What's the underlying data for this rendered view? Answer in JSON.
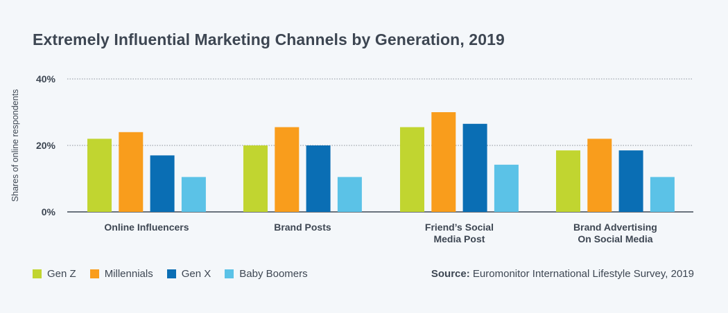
{
  "chart_data": {
    "type": "bar",
    "title": "Extremely Influential Marketing Channels by Generation, 2019",
    "ylabel": "Shares of online respondents",
    "yticks": [
      "0%",
      "20%",
      "40%"
    ],
    "ylim": [
      0,
      40
    ],
    "grid": true,
    "categories": [
      [
        "Online Influencers"
      ],
      [
        "Brand Posts"
      ],
      [
        "Friend’s Social",
        "Media Post"
      ],
      [
        "Brand Advertising",
        "On Social Media"
      ]
    ],
    "series": [
      {
        "name": "Gen Z",
        "color": "#c1d530",
        "values": [
          22,
          20,
          25.5,
          18.5
        ]
      },
      {
        "name": "Millennials",
        "color": "#f99d1c",
        "values": [
          24,
          25.5,
          30,
          22
        ]
      },
      {
        "name": "Gen X",
        "color": "#0a6eb4",
        "values": [
          17,
          20,
          26.5,
          18.5
        ]
      },
      {
        "name": "Baby Boomers",
        "color": "#5bc2e7",
        "values": [
          10.5,
          10.5,
          14.2,
          10.5
        ]
      }
    ],
    "legend_position": "bottom-left"
  },
  "source": {
    "label": "Source:",
    "text": "Euromonitor International Lifestyle Survey, 2019"
  }
}
